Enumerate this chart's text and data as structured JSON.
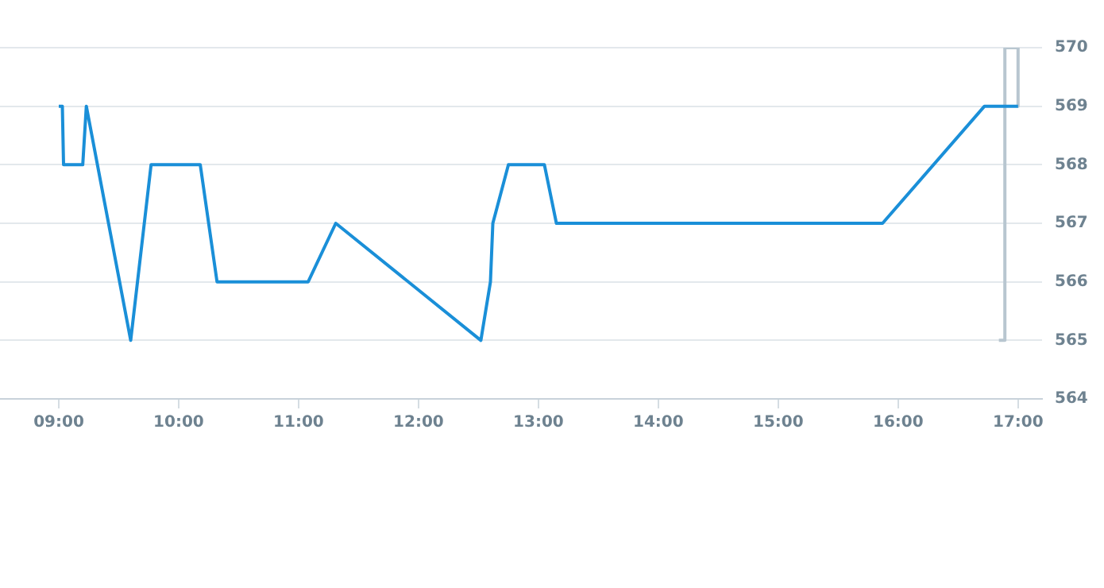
{
  "chart_data": {
    "type": "line",
    "xlim": [
      8.51,
      17.2
    ],
    "ylim": [
      564,
      570
    ],
    "xticks": [
      {
        "value": 9,
        "label": "09:00"
      },
      {
        "value": 10,
        "label": "10:00"
      },
      {
        "value": 11,
        "label": "11:00"
      },
      {
        "value": 12,
        "label": "12:00"
      },
      {
        "value": 13,
        "label": "13:00"
      },
      {
        "value": 14,
        "label": "14:00"
      },
      {
        "value": 15,
        "label": "15:00"
      },
      {
        "value": 16,
        "label": "16:00"
      },
      {
        "value": 17,
        "label": "17:00"
      }
    ],
    "yticks": [
      564,
      565,
      566,
      567,
      568,
      569,
      570
    ],
    "grid": "y",
    "legend": false,
    "marker": "none",
    "line_style": "solid",
    "series": [
      {
        "color": "#1a8fd8",
        "x": [
          9.0,
          9.03,
          9.04,
          9.2,
          9.23,
          9.6,
          9.77,
          10.18,
          10.32,
          11.08,
          11.31,
          12.52,
          12.6,
          12.62,
          12.75,
          13.05,
          13.15,
          15.87,
          16.72,
          17.0
        ],
        "values": [
          569,
          569,
          568,
          568,
          569,
          565,
          568,
          568,
          566,
          566,
          567,
          565,
          566,
          567,
          568,
          568,
          567,
          567,
          569,
          569
        ]
      },
      {
        "color": "#b8c6d0",
        "x": [
          16.84,
          16.89,
          16.89,
          17.0,
          17.0
        ],
        "values": [
          565,
          565,
          570,
          570,
          569
        ]
      }
    ]
  }
}
